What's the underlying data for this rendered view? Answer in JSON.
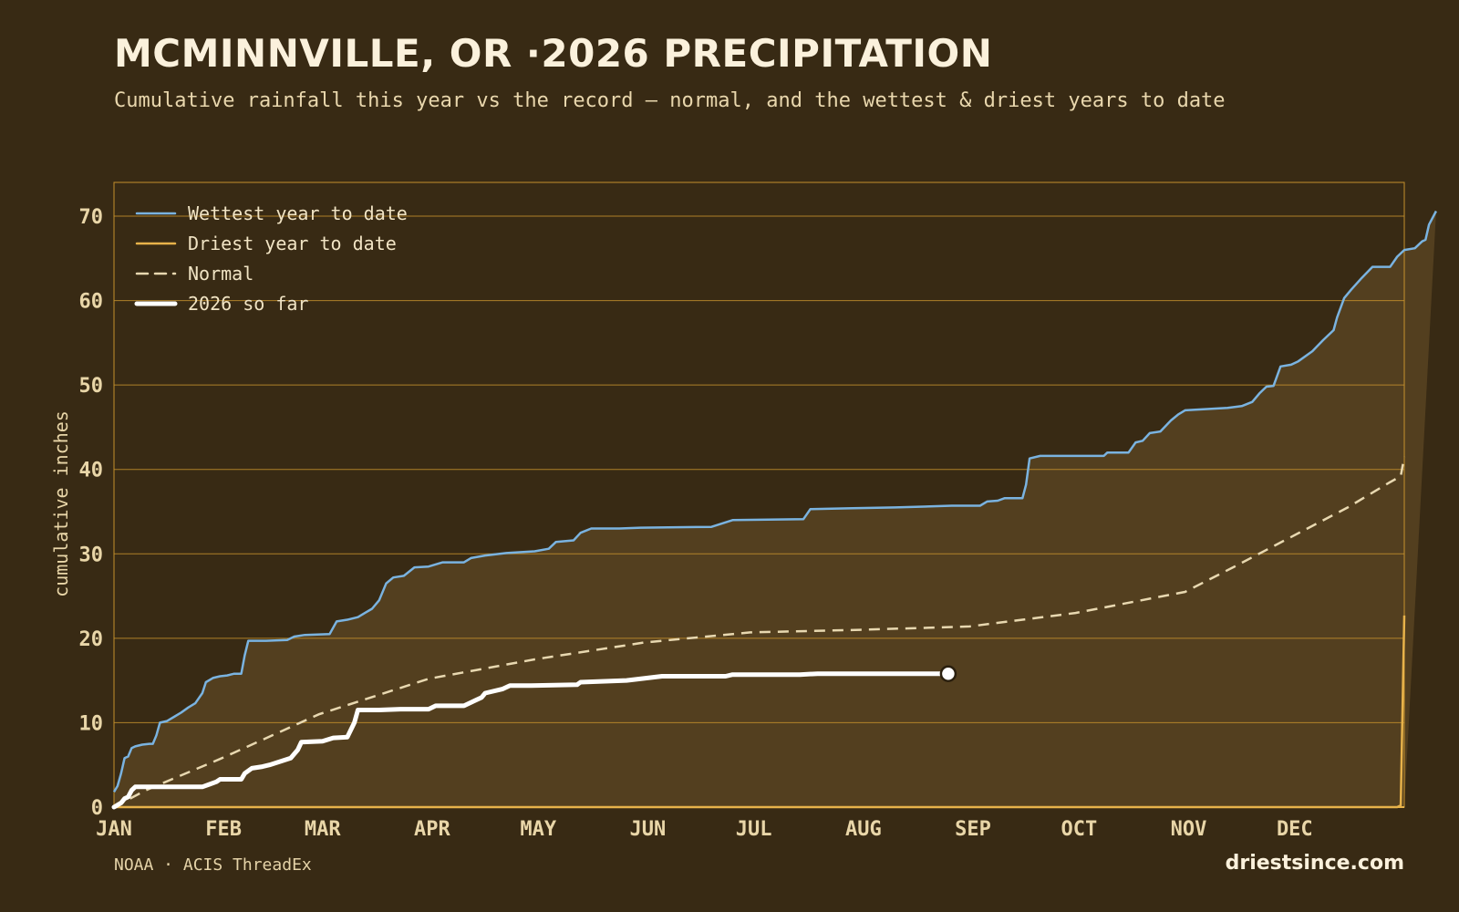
{
  "title": "MCMINNVILLE, OR ·2026 PRECIPITATION",
  "subtitle": "Cumulative rainfall this year vs the record — normal, and the wettest & driest years to date",
  "footer": {
    "source": "NOAA · ACIS ThreadEx",
    "brand": "driestsince.com"
  },
  "chart_data": {
    "type": "line",
    "ylabel": "cumulative inches",
    "ylim": [
      0,
      74
    ],
    "yticks": [
      0,
      10,
      20,
      30,
      40,
      50,
      60,
      70
    ],
    "x_unit": "day of year",
    "xlim": [
      1,
      365
    ],
    "month_ticks": [
      {
        "label": "JAN",
        "day": 1
      },
      {
        "label": "FEB",
        "day": 32
      },
      {
        "label": "MAR",
        "day": 60
      },
      {
        "label": "APR",
        "day": 91
      },
      {
        "label": "MAY",
        "day": 121
      },
      {
        "label": "JUN",
        "day": 152
      },
      {
        "label": "JUL",
        "day": 182
      },
      {
        "label": "AUG",
        "day": 213
      },
      {
        "label": "SEP",
        "day": 244
      },
      {
        "label": "OCT",
        "day": 274
      },
      {
        "label": "NOV",
        "day": 305
      },
      {
        "label": "DEC",
        "day": 335
      }
    ],
    "grid": "horizontal",
    "legend_position": "top-left",
    "colors": {
      "background": "#382a14",
      "grid": "#c4902c",
      "fill": "#533f1f",
      "wettest": "#7ab3e0",
      "driest": "#e7b24a",
      "normal": "#e8d8b0",
      "current": "#ffffff",
      "tick_label": "#e9d6a8"
    },
    "series": [
      {
        "name": "Wettest year to date",
        "style": "solid",
        "points": [
          [
            1,
            1.8
          ],
          [
            2,
            2.5
          ],
          [
            3,
            4
          ],
          [
            4,
            5.8
          ],
          [
            5,
            6
          ],
          [
            6,
            7
          ],
          [
            7,
            7.2
          ],
          [
            9,
            7.4
          ],
          [
            11,
            7.5
          ],
          [
            12,
            7.5
          ],
          [
            13,
            8.5
          ],
          [
            14,
            10
          ],
          [
            16,
            10.2
          ],
          [
            18,
            10.7
          ],
          [
            20,
            11.2
          ],
          [
            22,
            11.8
          ],
          [
            24,
            12.3
          ],
          [
            26,
            13.5
          ],
          [
            27,
            14.8
          ],
          [
            29,
            15.3
          ],
          [
            31,
            15.5
          ],
          [
            33,
            15.6
          ],
          [
            35,
            15.8
          ],
          [
            37,
            15.8
          ],
          [
            38,
            18
          ],
          [
            39,
            19.7
          ],
          [
            44,
            19.7
          ],
          [
            50,
            19.8
          ],
          [
            52,
            20.2
          ],
          [
            55,
            20.4
          ],
          [
            62,
            20.5
          ],
          [
            64,
            22
          ],
          [
            67,
            22.2
          ],
          [
            70,
            22.5
          ],
          [
            72,
            23
          ],
          [
            74,
            23.5
          ],
          [
            76,
            24.5
          ],
          [
            78,
            26.5
          ],
          [
            80,
            27.2
          ],
          [
            83,
            27.4
          ],
          [
            86,
            28.4
          ],
          [
            90,
            28.5
          ],
          [
            94,
            29
          ],
          [
            100,
            29
          ],
          [
            102,
            29.5
          ],
          [
            106,
            29.8
          ],
          [
            112,
            30.1
          ],
          [
            120,
            30.3
          ],
          [
            124,
            30.6
          ],
          [
            126,
            31.4
          ],
          [
            131,
            31.6
          ],
          [
            133,
            32.5
          ],
          [
            136,
            33
          ],
          [
            144,
            33
          ],
          [
            150,
            33.1
          ],
          [
            170,
            33.2
          ],
          [
            176,
            34
          ],
          [
            196,
            34.1
          ],
          [
            198,
            35.3
          ],
          [
            210,
            35.4
          ],
          [
            222,
            35.5
          ],
          [
            238,
            35.7
          ],
          [
            246,
            35.7
          ],
          [
            248,
            36.2
          ],
          [
            251,
            36.3
          ],
          [
            253,
            36.6
          ],
          [
            258,
            36.6
          ],
          [
            259,
            38.2
          ],
          [
            260,
            41.3
          ],
          [
            263,
            41.6
          ],
          [
            281,
            41.6
          ],
          [
            282,
            42
          ],
          [
            288,
            42
          ],
          [
            290,
            43.2
          ],
          [
            292,
            43.4
          ],
          [
            294,
            44.3
          ],
          [
            297,
            44.5
          ],
          [
            300,
            45.8
          ],
          [
            302,
            46.5
          ],
          [
            304,
            47
          ],
          [
            316,
            47.3
          ],
          [
            320,
            47.5
          ],
          [
            323,
            48
          ],
          [
            325,
            49
          ],
          [
            327,
            49.8
          ],
          [
            329,
            49.9
          ],
          [
            331,
            52.2
          ],
          [
            334,
            52.4
          ],
          [
            336,
            52.8
          ],
          [
            340,
            54
          ],
          [
            343,
            55.3
          ],
          [
            346,
            56.5
          ],
          [
            347,
            58
          ],
          [
            349,
            60.3
          ],
          [
            351,
            61.3
          ],
          [
            354,
            62.7
          ],
          [
            357,
            64
          ],
          [
            362,
            64
          ],
          [
            364,
            65.2
          ],
          [
            366,
            66
          ],
          [
            369,
            66.2
          ],
          [
            371,
            67
          ],
          [
            372,
            67.2
          ],
          [
            373,
            69
          ],
          [
            375,
            70.6
          ]
        ]
      },
      {
        "name": "Driest year to date",
        "style": "solid",
        "points": [
          [
            1,
            0
          ],
          [
            364,
            0
          ],
          [
            365,
            0.2
          ],
          [
            366,
            22.7
          ]
        ]
      },
      {
        "name": "Normal",
        "style": "dashed",
        "points": [
          [
            1,
            0
          ],
          [
            10,
            2
          ],
          [
            31,
            5.7
          ],
          [
            59,
            11
          ],
          [
            90,
            15.2
          ],
          [
            120,
            17.5
          ],
          [
            151,
            19.5
          ],
          [
            181,
            20.7
          ],
          [
            212,
            21
          ],
          [
            243,
            21.4
          ],
          [
            273,
            23
          ],
          [
            304,
            25.5
          ],
          [
            318,
            28.5
          ],
          [
            334,
            32
          ],
          [
            350,
            35.5
          ],
          [
            362,
            38.5
          ],
          [
            365,
            39.2
          ],
          [
            366,
            41.5
          ]
        ]
      },
      {
        "name": "2026 so far",
        "style": "bold",
        "end_marker": true,
        "points": [
          [
            1,
            0
          ],
          [
            3,
            0.5
          ],
          [
            4,
            1
          ],
          [
            5,
            1.2
          ],
          [
            6,
            2
          ],
          [
            7,
            2.4
          ],
          [
            10,
            2.4
          ],
          [
            20,
            2.4
          ],
          [
            26,
            2.4
          ],
          [
            28,
            2.7
          ],
          [
            30,
            3
          ],
          [
            31,
            3.3
          ],
          [
            37,
            3.3
          ],
          [
            38,
            4
          ],
          [
            40,
            4.6
          ],
          [
            43,
            4.8
          ],
          [
            45,
            5
          ],
          [
            48,
            5.4
          ],
          [
            51,
            5.8
          ],
          [
            53,
            6.8
          ],
          [
            54,
            7.7
          ],
          [
            60,
            7.8
          ],
          [
            63,
            8.2
          ],
          [
            67,
            8.3
          ],
          [
            69,
            10
          ],
          [
            70,
            11.5
          ],
          [
            76,
            11.5
          ],
          [
            82,
            11.6
          ],
          [
            90,
            11.6
          ],
          [
            92,
            12
          ],
          [
            100,
            12
          ],
          [
            103,
            12.6
          ],
          [
            105,
            13
          ],
          [
            106,
            13.5
          ],
          [
            111,
            14
          ],
          [
            113,
            14.4
          ],
          [
            119,
            14.4
          ],
          [
            132,
            14.5
          ],
          [
            133,
            14.8
          ],
          [
            146,
            15
          ],
          [
            156,
            15.5
          ],
          [
            174,
            15.5
          ],
          [
            176,
            15.7
          ],
          [
            195,
            15.7
          ],
          [
            200,
            15.8
          ],
          [
            237,
            15.8
          ]
        ]
      }
    ]
  }
}
